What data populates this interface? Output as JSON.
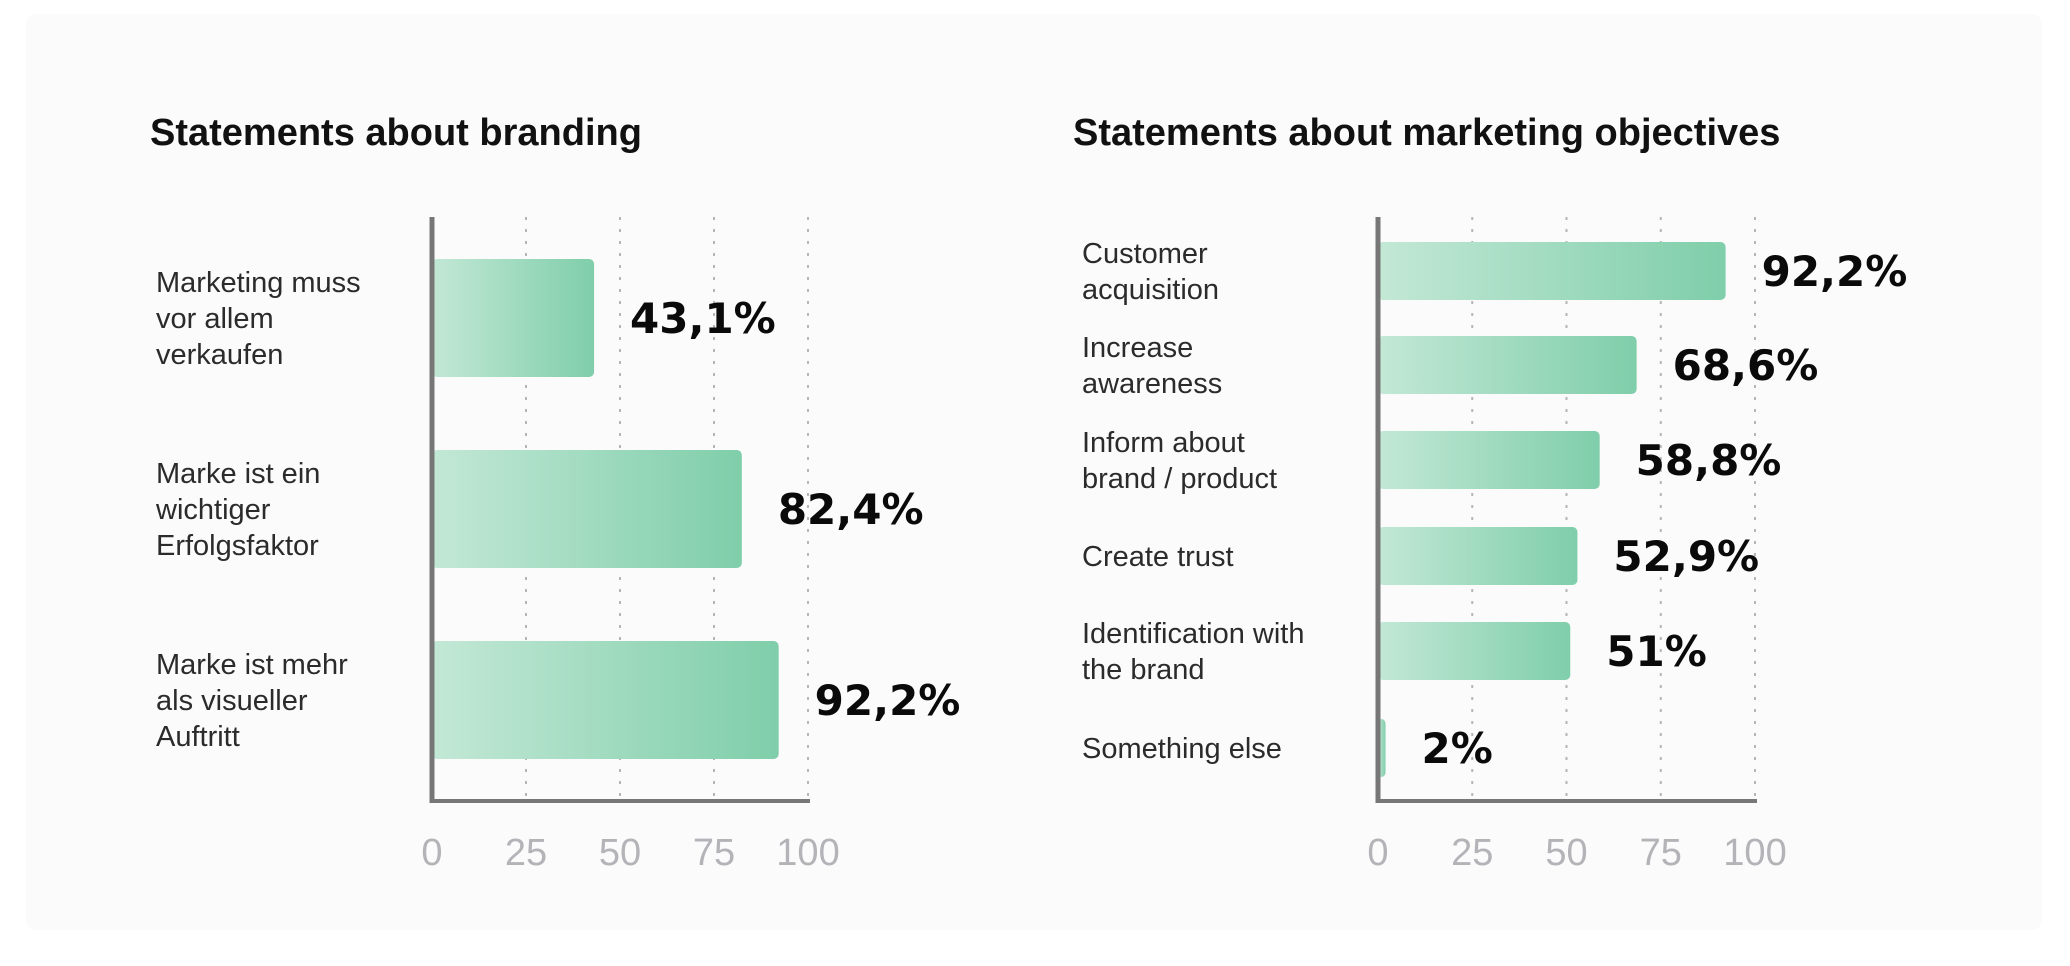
{
  "colors": {
    "bar_start": "#c3e8d6",
    "bar_end": "#7fceaa",
    "axis": "#777777",
    "grid": "#b6b6b6"
  },
  "chart_data": [
    {
      "type": "bar",
      "orientation": "horizontal",
      "title": "Statements about branding",
      "categories": [
        "Marketing muss\nvor allem\nverkaufen",
        "Marke ist ein\nwichtiger\nErfolgsfaktor",
        "Marke ist mehr\nals visueller\nAuftritt"
      ],
      "values": [
        43.1,
        82.4,
        92.2
      ],
      "value_labels": [
        "43,1%",
        "82,4%",
        "92,2%"
      ],
      "xlim": [
        0,
        100
      ],
      "xticks": [
        "0",
        "25",
        "50",
        "75",
        "100"
      ],
      "grid": "vertical dotted"
    },
    {
      "type": "bar",
      "orientation": "horizontal",
      "title": "Statements about marketing objectives",
      "categories": [
        "Customer\nacquisition",
        "Increase\nawareness",
        "Inform about\nbrand / product",
        "Create trust",
        "Identification with\nthe brand",
        "Something else"
      ],
      "values": [
        92.2,
        68.6,
        58.8,
        52.9,
        51,
        2
      ],
      "value_labels": [
        "92,2%",
        "68,6%",
        "58,8%",
        "52,9%",
        "51%",
        "2%"
      ],
      "xlim": [
        0,
        100
      ],
      "xticks": [
        "0",
        "25",
        "50",
        "75",
        "100"
      ],
      "grid": "vertical dotted"
    }
  ]
}
